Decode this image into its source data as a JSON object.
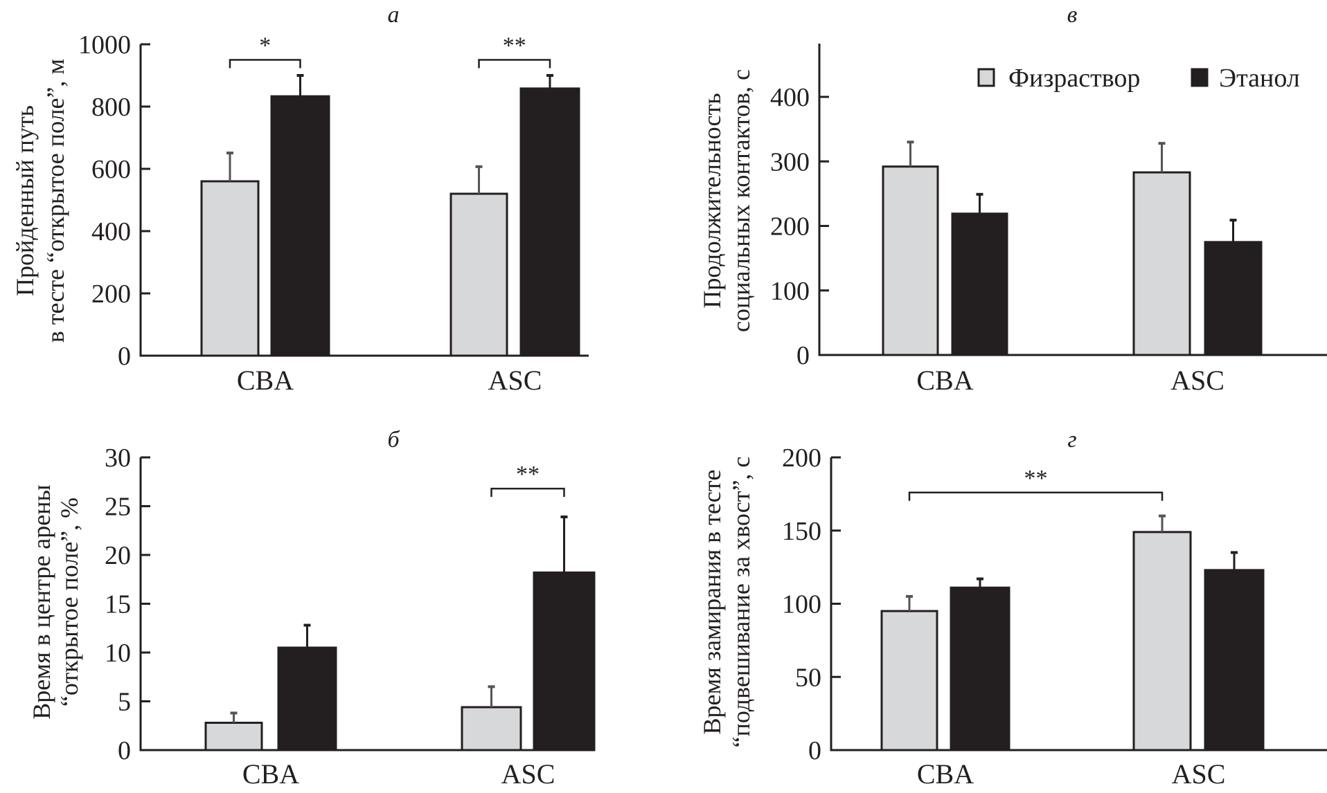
{
  "legend": {
    "items": [
      {
        "label": "Физраствор",
        "color": "#d7d8da"
      },
      {
        "label": "Этанол",
        "color": "#231f20"
      }
    ]
  },
  "colors": {
    "saline": "#d7d8da",
    "ethanol": "#231f20",
    "outline": "#231f20"
  },
  "chart_data": [
    {
      "id": "a",
      "type": "bar",
      "title": "а",
      "categories": [
        "CBA",
        "ASC"
      ],
      "ylabel_lines": [
        "Пройденный путь",
        "в тесте “открытое поле”, м"
      ],
      "xlabel": "",
      "ylim": [
        0,
        1000
      ],
      "yticks": [
        0,
        200,
        400,
        600,
        800,
        1000
      ],
      "series": [
        {
          "name": "Физраствор",
          "values": [
            560,
            520
          ],
          "error_upper": [
            651,
            607
          ]
        },
        {
          "name": "Этанол",
          "values": [
            833,
            858
          ],
          "error_upper": [
            900,
            900
          ]
        }
      ],
      "significance": [
        {
          "label": "*",
          "from": {
            "category": 0,
            "series": 0
          },
          "to": {
            "category": 0,
            "series": 1
          },
          "level": 950
        },
        {
          "label": "**",
          "from": {
            "category": 1,
            "series": 0
          },
          "to": {
            "category": 1,
            "series": 1
          },
          "level": 950
        }
      ]
    },
    {
      "id": "v",
      "type": "bar",
      "title": "в",
      "categories": [
        "CBA",
        "ASC"
      ],
      "ylabel_lines": [
        "Продолжительность",
        "социальных контактов, с"
      ],
      "xlabel": "",
      "ylim": [
        0,
        480
      ],
      "yticks": [
        0,
        100,
        200,
        300,
        400
      ],
      "series": [
        {
          "name": "Физраствор",
          "values": [
            292,
            283
          ],
          "error_upper": [
            330,
            328
          ]
        },
        {
          "name": "Этанол",
          "values": [
            219,
            175
          ],
          "error_upper": [
            249,
            209
          ]
        }
      ],
      "legend_position": "top-right",
      "significance": []
    },
    {
      "id": "b",
      "type": "bar",
      "title": "б",
      "categories": [
        "CBA",
        "ASC"
      ],
      "ylabel_lines": [
        "Время в центре арены",
        "“открытое поле”, %"
      ],
      "xlabel": "",
      "ylim": [
        0,
        30
      ],
      "yticks": [
        0,
        5,
        10,
        15,
        20,
        25,
        30
      ],
      "series": [
        {
          "name": "Физраствор",
          "values": [
            2.8,
            4.4
          ],
          "error_upper": [
            3.8,
            6.5
          ]
        },
        {
          "name": "Этанол",
          "values": [
            10.5,
            18.2
          ],
          "error_upper": [
            12.8,
            23.9
          ]
        }
      ],
      "significance": [
        {
          "label": "**",
          "from": {
            "category": 1,
            "series": 0
          },
          "to": {
            "category": 1,
            "series": 1
          },
          "level": 26.8
        }
      ]
    },
    {
      "id": "g",
      "type": "bar",
      "title": "г",
      "categories": [
        "CBA",
        "ASC"
      ],
      "ylabel_lines": [
        "Время замирания в тесте",
        "“подвешивание за хвост”, с"
      ],
      "xlabel": "",
      "ylim": [
        0,
        200
      ],
      "yticks": [
        0,
        50,
        100,
        150,
        200
      ],
      "series": [
        {
          "name": "Физраствор",
          "values": [
            95,
            149
          ],
          "error_upper": [
            105,
            160
          ]
        },
        {
          "name": "Этанол",
          "values": [
            111,
            123
          ],
          "error_upper": [
            117,
            135
          ]
        }
      ],
      "significance": [
        {
          "label": "**",
          "from": {
            "category": 0,
            "series": 0
          },
          "to": {
            "category": 1,
            "series": 0
          },
          "level": 176
        }
      ]
    }
  ]
}
